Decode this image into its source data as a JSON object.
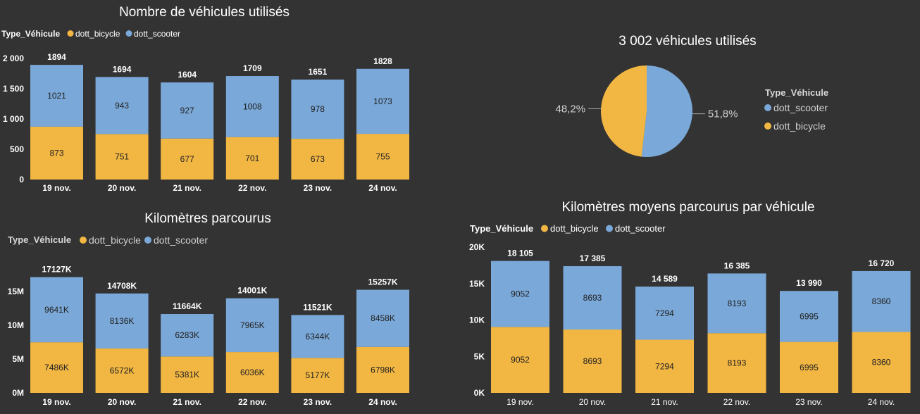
{
  "colors": {
    "bicycle": "#F2B643",
    "scooter": "#7AA8D8",
    "background": "#333333"
  },
  "chart_data": [
    {
      "id": "c1",
      "type": "bar",
      "stacked": true,
      "title": "Nombre de véhicules utilisés",
      "legend_title": "Type_Véhicule",
      "categories": [
        "19 nov.",
        "20 nov.",
        "21 nov.",
        "22 nov.",
        "23 nov.",
        "24 nov."
      ],
      "series": [
        {
          "name": "dott_bicycle",
          "values": [
            873,
            751,
            677,
            701,
            673,
            755
          ],
          "labels": [
            "873",
            "751",
            "677",
            "701",
            "673",
            "755"
          ]
        },
        {
          "name": "dott_scooter",
          "values": [
            1021,
            943,
            927,
            1008,
            978,
            1073
          ],
          "labels": [
            "1021",
            "943",
            "927",
            "1008",
            "978",
            "1073"
          ]
        }
      ],
      "totals": [
        "1894",
        "1694",
        "1604",
        "1709",
        "1651",
        "1828"
      ],
      "ylim": [
        0,
        2000
      ],
      "yticks": [
        0,
        500,
        1000,
        1500,
        2000
      ],
      "ytick_labels": [
        "0",
        "500",
        "1 000",
        "1 500",
        "2 000"
      ]
    },
    {
      "id": "c2",
      "type": "pie",
      "title": "3 002 véhicules utilisés",
      "legend_title": "Type_Véhicule",
      "slices": [
        {
          "name": "dott_scooter",
          "value": 51.8,
          "label": "51,8%"
        },
        {
          "name": "dott_bicycle",
          "value": 48.2,
          "label": "48,2%"
        }
      ]
    },
    {
      "id": "c3",
      "type": "bar",
      "stacked": true,
      "title": "Kilomètres parcourus",
      "legend_title": "Type_Véhicule",
      "categories": [
        "19 nov.",
        "20 nov.",
        "21 nov.",
        "22 nov.",
        "23 nov.",
        "24 nov."
      ],
      "series": [
        {
          "name": "dott_bicycle",
          "values": [
            7486000,
            6572000,
            5381000,
            6036000,
            5177000,
            6798000
          ],
          "labels": [
            "7486K",
            "6572K",
            "5381K",
            "6036K",
            "5177K",
            "6798K"
          ]
        },
        {
          "name": "dott_scooter",
          "values": [
            9641000,
            8136000,
            6283000,
            7965000,
            6344000,
            8458000
          ],
          "labels": [
            "9641K",
            "8136K",
            "6283K",
            "7965K",
            "6344K",
            "8458K"
          ]
        }
      ],
      "totals": [
        "17127K",
        "14708K",
        "11664K",
        "14001K",
        "11521K",
        "15257K"
      ],
      "ylim": [
        0,
        17500000
      ],
      "yticks": [
        0,
        5000000,
        10000000,
        15000000
      ],
      "ytick_labels": [
        "0M",
        "5M",
        "10M",
        "15M"
      ]
    },
    {
      "id": "c4",
      "type": "bar",
      "stacked": true,
      "title": "Kilomètres moyens parcourus par véhicule",
      "legend_title": "Type_Véhicule",
      "categories": [
        "19 nov.",
        "20 nov.",
        "21 nov.",
        "22 nov.",
        "23 nov.",
        "24 nov."
      ],
      "series": [
        {
          "name": "dott_bicycle",
          "values": [
            9052,
            8693,
            7294,
            8193,
            6995,
            8360
          ],
          "labels": [
            "9052",
            "8693",
            "7294",
            "8193",
            "6995",
            "8360"
          ]
        },
        {
          "name": "dott_scooter",
          "values": [
            9052,
            8693,
            7294,
            8193,
            6995,
            8360
          ],
          "labels": [
            "9052",
            "8693",
            "7294",
            "8193",
            "6995",
            "8360"
          ]
        }
      ],
      "totals": [
        "18 105",
        "17 385",
        "14 589",
        "16 385",
        "13 990",
        "16 720"
      ],
      "ylim": [
        0,
        20000
      ],
      "yticks": [
        0,
        5000,
        10000,
        15000,
        20000
      ],
      "ytick_labels": [
        "0K",
        "5K",
        "10K",
        "15K",
        "20K"
      ]
    }
  ]
}
